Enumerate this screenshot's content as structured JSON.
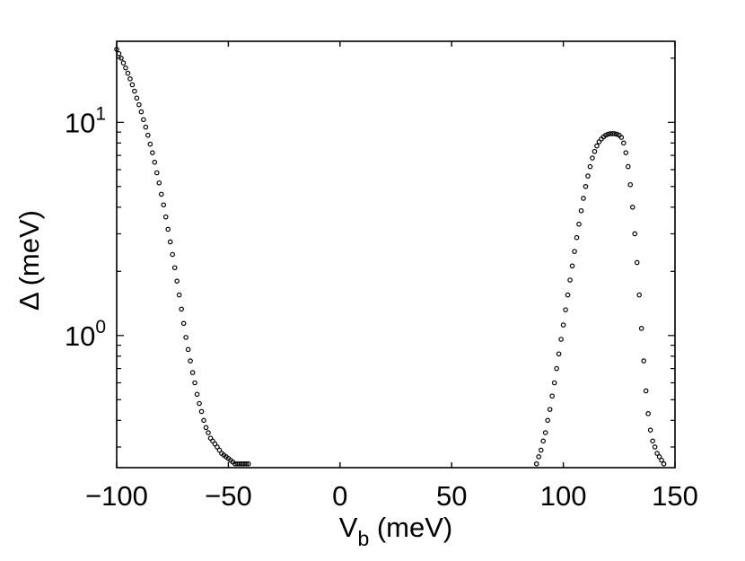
{
  "chart_data": {
    "type": "scatter",
    "xlabel_main": "V",
    "xlabel_sub": "b",
    "xlabel_unit": " (meV)",
    "ylabel": "Δ (meV)",
    "xlim": [
      -100,
      150
    ],
    "ylim": [
      0.24,
      24
    ],
    "yscale": "log",
    "xticks": [
      "−100",
      "−50",
      "0",
      "50",
      "100",
      "150"
    ],
    "xtick_values": [
      -100,
      -50,
      0,
      50,
      100,
      150
    ],
    "yticks": [
      {
        "value": 1,
        "base": "10",
        "exp": "0"
      },
      {
        "value": 10,
        "base": "10",
        "exp": "1"
      }
    ],
    "grid": false,
    "marker": "open circle",
    "color": "#000000",
    "series": [
      {
        "values_x": [
          -100,
          -99,
          -98,
          -97,
          -96,
          -95,
          -94,
          -93,
          -92,
          -91,
          -90,
          -89,
          -88,
          -87,
          -86,
          -85,
          -84,
          -83,
          -82,
          -81,
          -80,
          -79,
          -78,
          -77,
          -76,
          -75,
          -74,
          -73,
          -72,
          -71,
          -70,
          -69,
          -68,
          -67,
          -66,
          -65,
          -64,
          -63,
          -62,
          -61,
          -60,
          -59,
          -58,
          -57,
          -56,
          -55,
          -54,
          -53,
          -52,
          -51,
          -50,
          -49,
          -48,
          -47,
          -46,
          -45,
          -44,
          -43,
          -42,
          -41
        ],
        "values_y": [
          22.0,
          21.0,
          20.0,
          19.0,
          18.0,
          17.0,
          16.0,
          15.0,
          14.0,
          13.0,
          12.1,
          11.2,
          10.3,
          9.5,
          8.7,
          7.9,
          7.2,
          6.5,
          5.8,
          5.2,
          4.6,
          4.1,
          3.6,
          3.15,
          2.75,
          2.4,
          2.08,
          1.8,
          1.55,
          1.33,
          1.14,
          0.98,
          0.86,
          0.76,
          0.67,
          0.6,
          0.53,
          0.48,
          0.44,
          0.4,
          0.37,
          0.35,
          0.33,
          0.32,
          0.31,
          0.3,
          0.29,
          0.28,
          0.275,
          0.27,
          0.265,
          0.26,
          0.255,
          0.25,
          0.25,
          0.25,
          0.25,
          0.25,
          0.25,
          0.25
        ]
      },
      {
        "values_x": [
          88,
          89,
          90,
          91,
          92,
          93,
          94,
          95,
          96,
          97,
          98,
          99,
          100,
          101,
          102,
          103,
          104,
          105,
          106,
          107,
          108,
          109,
          110,
          111,
          112,
          113,
          114,
          115,
          116,
          117,
          118,
          119,
          120,
          121,
          122,
          123,
          124,
          125,
          126,
          127,
          128,
          129,
          130,
          131,
          132,
          133,
          134,
          135,
          136,
          137,
          138,
          139,
          140,
          141,
          142,
          143,
          144,
          145
        ],
        "values_y": [
          0.25,
          0.27,
          0.29,
          0.32,
          0.35,
          0.4,
          0.45,
          0.52,
          0.6,
          0.7,
          0.82,
          0.96,
          1.12,
          1.32,
          1.55,
          1.82,
          2.12,
          2.48,
          2.88,
          3.33,
          3.85,
          4.4,
          5.0,
          5.6,
          6.2,
          6.8,
          7.3,
          7.75,
          8.1,
          8.35,
          8.55,
          8.7,
          8.8,
          8.85,
          8.85,
          8.85,
          8.8,
          8.7,
          8.5,
          8.0,
          7.2,
          6.2,
          5.1,
          4.0,
          3.0,
          2.2,
          1.55,
          1.08,
          0.76,
          0.55,
          0.43,
          0.36,
          0.32,
          0.3,
          0.28,
          0.27,
          0.26,
          0.25
        ]
      }
    ]
  }
}
